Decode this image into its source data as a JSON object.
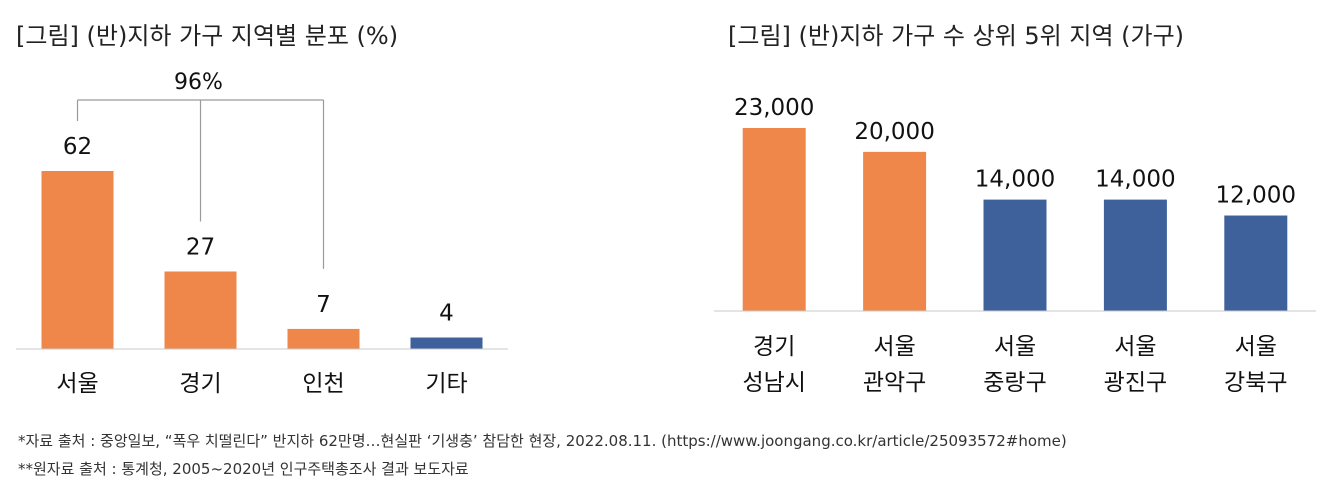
{
  "chart_data": [
    {
      "type": "bar",
      "title": "[그림] (반)지하 가구 지역별 분포 (%)",
      "categories": [
        "서울",
        "경기",
        "인천",
        "기타"
      ],
      "values": [
        62,
        27,
        7,
        4
      ],
      "bar_colors": [
        "#f0874a",
        "#f0874a",
        "#f0874a",
        "#3e619c"
      ],
      "ylim": [
        0,
        70
      ],
      "grid": false,
      "annotation": {
        "text": "96%",
        "covers": [
          "서울",
          "경기",
          "인천"
        ]
      }
    },
    {
      "type": "bar",
      "title": "[그림] (반)지하 가구 수 상위 5위 지역 (가구)",
      "categories": [
        [
          "경기",
          "성남시"
        ],
        [
          "서울",
          "관악구"
        ],
        [
          "서울",
          "중랑구"
        ],
        [
          "서울",
          "광진구"
        ],
        [
          "서울",
          "강북구"
        ]
      ],
      "values": [
        23000,
        20000,
        14000,
        14000,
        12000
      ],
      "value_labels": [
        "23,000",
        "20,000",
        "14,000",
        "14,000",
        "12,000"
      ],
      "bar_colors": [
        "#f0874a",
        "#f0874a",
        "#3e619c",
        "#3e619c",
        "#3e619c"
      ],
      "ylim": [
        0,
        25000
      ],
      "grid": false
    }
  ],
  "footnotes": [
    "*자료 출처 : 중앙일보, “폭우 치떨린다” 반지하 62만명…현실판 ‘기생충’ 참담한 현장, 2022.08.11. (https://www.joongang.co.kr/article/25093572#home)",
    "**원자료 출처 : 통계청, 2005~2020년 인구주택총조사 결과 보도자료"
  ]
}
